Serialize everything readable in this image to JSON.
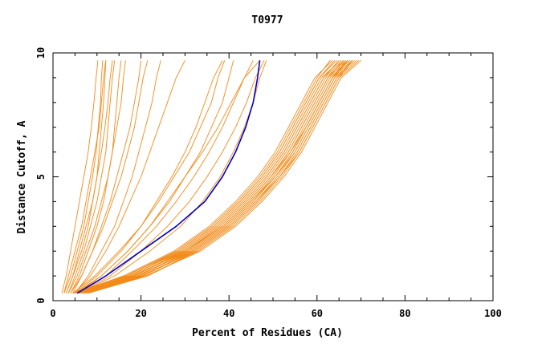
{
  "chart_data": {
    "type": "line",
    "title": "T0977",
    "xlabel": "Percent of Residues (CA)",
    "ylabel": "Distance Cutoff, A",
    "xlim": [
      0,
      100
    ],
    "ylim": [
      0,
      10
    ],
    "x_ticks": [
      0,
      20,
      40,
      60,
      80,
      100
    ],
    "y_ticks": [
      0,
      5,
      10
    ],
    "grid": false,
    "legend": "none",
    "colors": {
      "background": "#ffffff",
      "axis": "#000000",
      "models": "#f28a18",
      "highlight": "#0000cc"
    },
    "y_levels": [
      0.3,
      1,
      2,
      3,
      4,
      5,
      6,
      7,
      8,
      9,
      9.7
    ],
    "series": [
      {
        "style": "steep",
        "x": [
          2.0,
          3.0,
          4.0,
          5.0,
          6.0,
          7.0,
          8.0,
          8.7,
          9.3,
          9.8,
          10.2
        ]
      },
      {
        "style": "steep",
        "x": [
          2.5,
          3.5,
          5.0,
          6.5,
          7.5,
          8.5,
          9.5,
          10.5,
          11.0,
          11.5,
          12.0
        ]
      },
      {
        "style": "steep",
        "x": [
          3.0,
          4.5,
          6.0,
          7.5,
          9.0,
          10.0,
          11.0,
          11.8,
          12.5,
          13.0,
          13.5
        ]
      },
      {
        "style": "steep",
        "x": [
          3.5,
          5.0,
          7.0,
          8.5,
          10.0,
          11.0,
          12.0,
          12.5,
          13.0,
          13.5,
          14.0
        ]
      },
      {
        "style": "steep",
        "x": [
          3.0,
          4.5,
          6.5,
          8.0,
          9.0,
          10.0,
          10.5,
          11.0,
          11.5,
          11.8,
          12.0
        ]
      },
      {
        "style": "steep",
        "x": [
          4.0,
          6.0,
          8.0,
          10.0,
          11.5,
          12.5,
          13.5,
          14.0,
          14.5,
          15.0,
          15.5
        ]
      },
      {
        "style": "steep",
        "x": [
          2.5,
          4.0,
          5.5,
          7.0,
          8.0,
          9.0,
          9.8,
          10.3,
          10.8,
          11.0,
          11.3
        ]
      },
      {
        "style": "steep",
        "x": [
          3.5,
          5.5,
          7.5,
          9.5,
          11.0,
          12.5,
          13.5,
          14.5,
          15.5,
          16.0,
          16.5
        ]
      },
      {
        "style": "steep",
        "x": [
          4.5,
          6.5,
          9.0,
          11.0,
          13.0,
          14.5,
          16.0,
          17.5,
          18.5,
          19.5,
          20.0
        ]
      },
      {
        "style": "steep",
        "x": [
          4.0,
          6.5,
          9.0,
          11.5,
          13.5,
          15.5,
          17.0,
          18.5,
          19.5,
          20.5,
          21.5
        ]
      },
      {
        "style": "steep",
        "x": [
          5.0,
          8.0,
          11.0,
          14.0,
          16.0,
          18.0,
          19.5,
          21.0,
          22.5,
          23.5,
          24.5
        ]
      },
      {
        "style": "steep",
        "x": [
          5.0,
          8.5,
          12.0,
          15.0,
          17.5,
          20.0,
          22.0,
          24.0,
          26.0,
          28.0,
          30.0
        ]
      },
      {
        "style": "mid",
        "x": [
          5.0,
          10.0,
          15.5,
          20.0,
          23.5,
          27.0,
          30.0,
          32.5,
          34.5,
          36.5,
          38.5
        ]
      },
      {
        "style": "mid",
        "x": [
          5.5,
          11.0,
          17.0,
          22.0,
          26.5,
          30.0,
          33.5,
          36.0,
          38.5,
          40.0,
          41.0
        ]
      },
      {
        "style": "mid",
        "x": [
          6.0,
          12.0,
          18.0,
          23.5,
          28.0,
          32.0,
          35.5,
          38.5,
          41.0,
          43.5,
          45.5
        ]
      },
      {
        "style": "mid",
        "x": [
          5.0,
          11.0,
          17.0,
          22.0,
          26.0,
          30.0,
          34.0,
          37.5,
          40.5,
          43.5,
          47.0
        ]
      },
      {
        "style": "mid",
        "x": [
          6.0,
          13.0,
          20.0,
          26.0,
          31.0,
          35.0,
          38.5,
          41.5,
          44.0,
          46.0,
          48.0
        ]
      },
      {
        "style": "mid",
        "x": [
          4.5,
          9.5,
          15.0,
          20.0,
          24.0,
          27.5,
          31.0,
          33.5,
          36.0,
          37.5,
          39.0
        ]
      },
      {
        "style": "mid",
        "x": [
          6.0,
          14.0,
          22.0,
          29.0,
          34.0,
          38.0,
          41.0,
          43.5,
          45.5,
          47.0,
          48.5
        ]
      },
      {
        "style": "cluster",
        "x": [
          4.5,
          16.5,
          28.5,
          36.5,
          42.5,
          47.5,
          51.5,
          54.5,
          57.5,
          60.5,
          64.5
        ]
      },
      {
        "style": "cluster",
        "x": [
          5.0,
          17.0,
          29.5,
          37.5,
          43.5,
          48.5,
          52.5,
          55.5,
          58.5,
          61.5,
          66.0
        ]
      },
      {
        "style": "cluster",
        "x": [
          5.5,
          18.0,
          30.5,
          38.5,
          44.5,
          49.5,
          53.5,
          56.5,
          59.5,
          62.5,
          67.0
        ]
      },
      {
        "style": "cluster",
        "x": [
          6.0,
          19.0,
          31.5,
          39.5,
          45.5,
          50.5,
          54.5,
          57.5,
          60.5,
          63.5,
          68.0
        ]
      },
      {
        "style": "cluster",
        "x": [
          6.5,
          20.0,
          32.5,
          40.5,
          46.5,
          51.5,
          55.5,
          58.5,
          61.5,
          64.5,
          69.0
        ]
      },
      {
        "style": "cluster",
        "x": [
          7.0,
          21.0,
          33.5,
          41.5,
          47.5,
          52.5,
          56.5,
          59.5,
          62.5,
          65.5,
          70.0
        ]
      },
      {
        "style": "cluster",
        "x": [
          5.0,
          16.0,
          27.5,
          35.5,
          41.5,
          46.5,
          50.5,
          53.5,
          56.5,
          59.5,
          63.5
        ]
      },
      {
        "style": "cluster",
        "x": [
          5.5,
          17.5,
          29.0,
          37.0,
          43.0,
          48.0,
          52.0,
          55.0,
          58.0,
          61.0,
          65.5
        ]
      },
      {
        "style": "cluster",
        "x": [
          6.0,
          18.5,
          30.0,
          38.0,
          44.0,
          49.0,
          53.0,
          56.0,
          59.0,
          62.0,
          66.5
        ]
      },
      {
        "style": "cluster",
        "x": [
          6.5,
          19.5,
          31.0,
          39.0,
          45.0,
          50.0,
          54.0,
          57.0,
          60.0,
          63.0,
          67.5
        ]
      },
      {
        "style": "cluster",
        "x": [
          7.0,
          20.5,
          32.0,
          40.0,
          46.0,
          51.0,
          55.0,
          58.0,
          61.0,
          64.0,
          68.5
        ]
      },
      {
        "style": "cluster",
        "x": [
          7.5,
          21.5,
          33.0,
          41.0,
          47.0,
          52.0,
          56.0,
          59.0,
          62.0,
          65.0,
          69.5
        ]
      },
      {
        "style": "cluster",
        "x": [
          6.0,
          17.5,
          28.5,
          36.5,
          42.5,
          47.5,
          51.5,
          54.5,
          57.5,
          60.5,
          64.0
        ]
      },
      {
        "style": "cluster",
        "x": [
          6.5,
          18.5,
          29.5,
          37.5,
          43.5,
          48.5,
          52.5,
          55.5,
          58.5,
          61.5,
          65.0
        ]
      },
      {
        "style": "cluster",
        "x": [
          7.0,
          19.5,
          30.5,
          38.5,
          44.5,
          49.5,
          53.5,
          56.5,
          59.5,
          62.5,
          66.0
        ]
      },
      {
        "style": "cluster",
        "x": [
          7.5,
          20.5,
          31.5,
          39.5,
          45.5,
          50.5,
          54.5,
          57.5,
          60.5,
          63.5,
          67.0
        ]
      },
      {
        "style": "cluster",
        "x": [
          8.0,
          21.5,
          32.5,
          40.5,
          46.5,
          51.5,
          55.5,
          58.5,
          61.5,
          64.5,
          68.0
        ]
      },
      {
        "style": "cluster",
        "x": [
          5.5,
          16.5,
          28.0,
          36.0,
          42.0,
          47.0,
          51.0,
          54.0,
          57.0,
          60.0,
          63.0
        ]
      },
      {
        "style": "cluster",
        "x": [
          6.0,
          18.0,
          30.0,
          38.5,
          44.5,
          49.5,
          54.0,
          57.5,
          60.5,
          63.5,
          66.5
        ]
      },
      {
        "style": "cluster",
        "x": [
          6.5,
          19.0,
          31.0,
          39.0,
          45.0,
          50.5,
          55.0,
          58.0,
          61.0,
          64.0,
          67.0
        ]
      },
      {
        "style": "cluster",
        "x": [
          7.0,
          20.0,
          32.0,
          40.0,
          46.0,
          51.5,
          56.0,
          59.0,
          62.0,
          65.0,
          68.0
        ]
      },
      {
        "style": "highlight",
        "x": [
          5.5,
          12.0,
          20.0,
          28.0,
          34.5,
          38.5,
          41.5,
          43.8,
          45.5,
          46.5,
          47.0
        ]
      }
    ]
  }
}
